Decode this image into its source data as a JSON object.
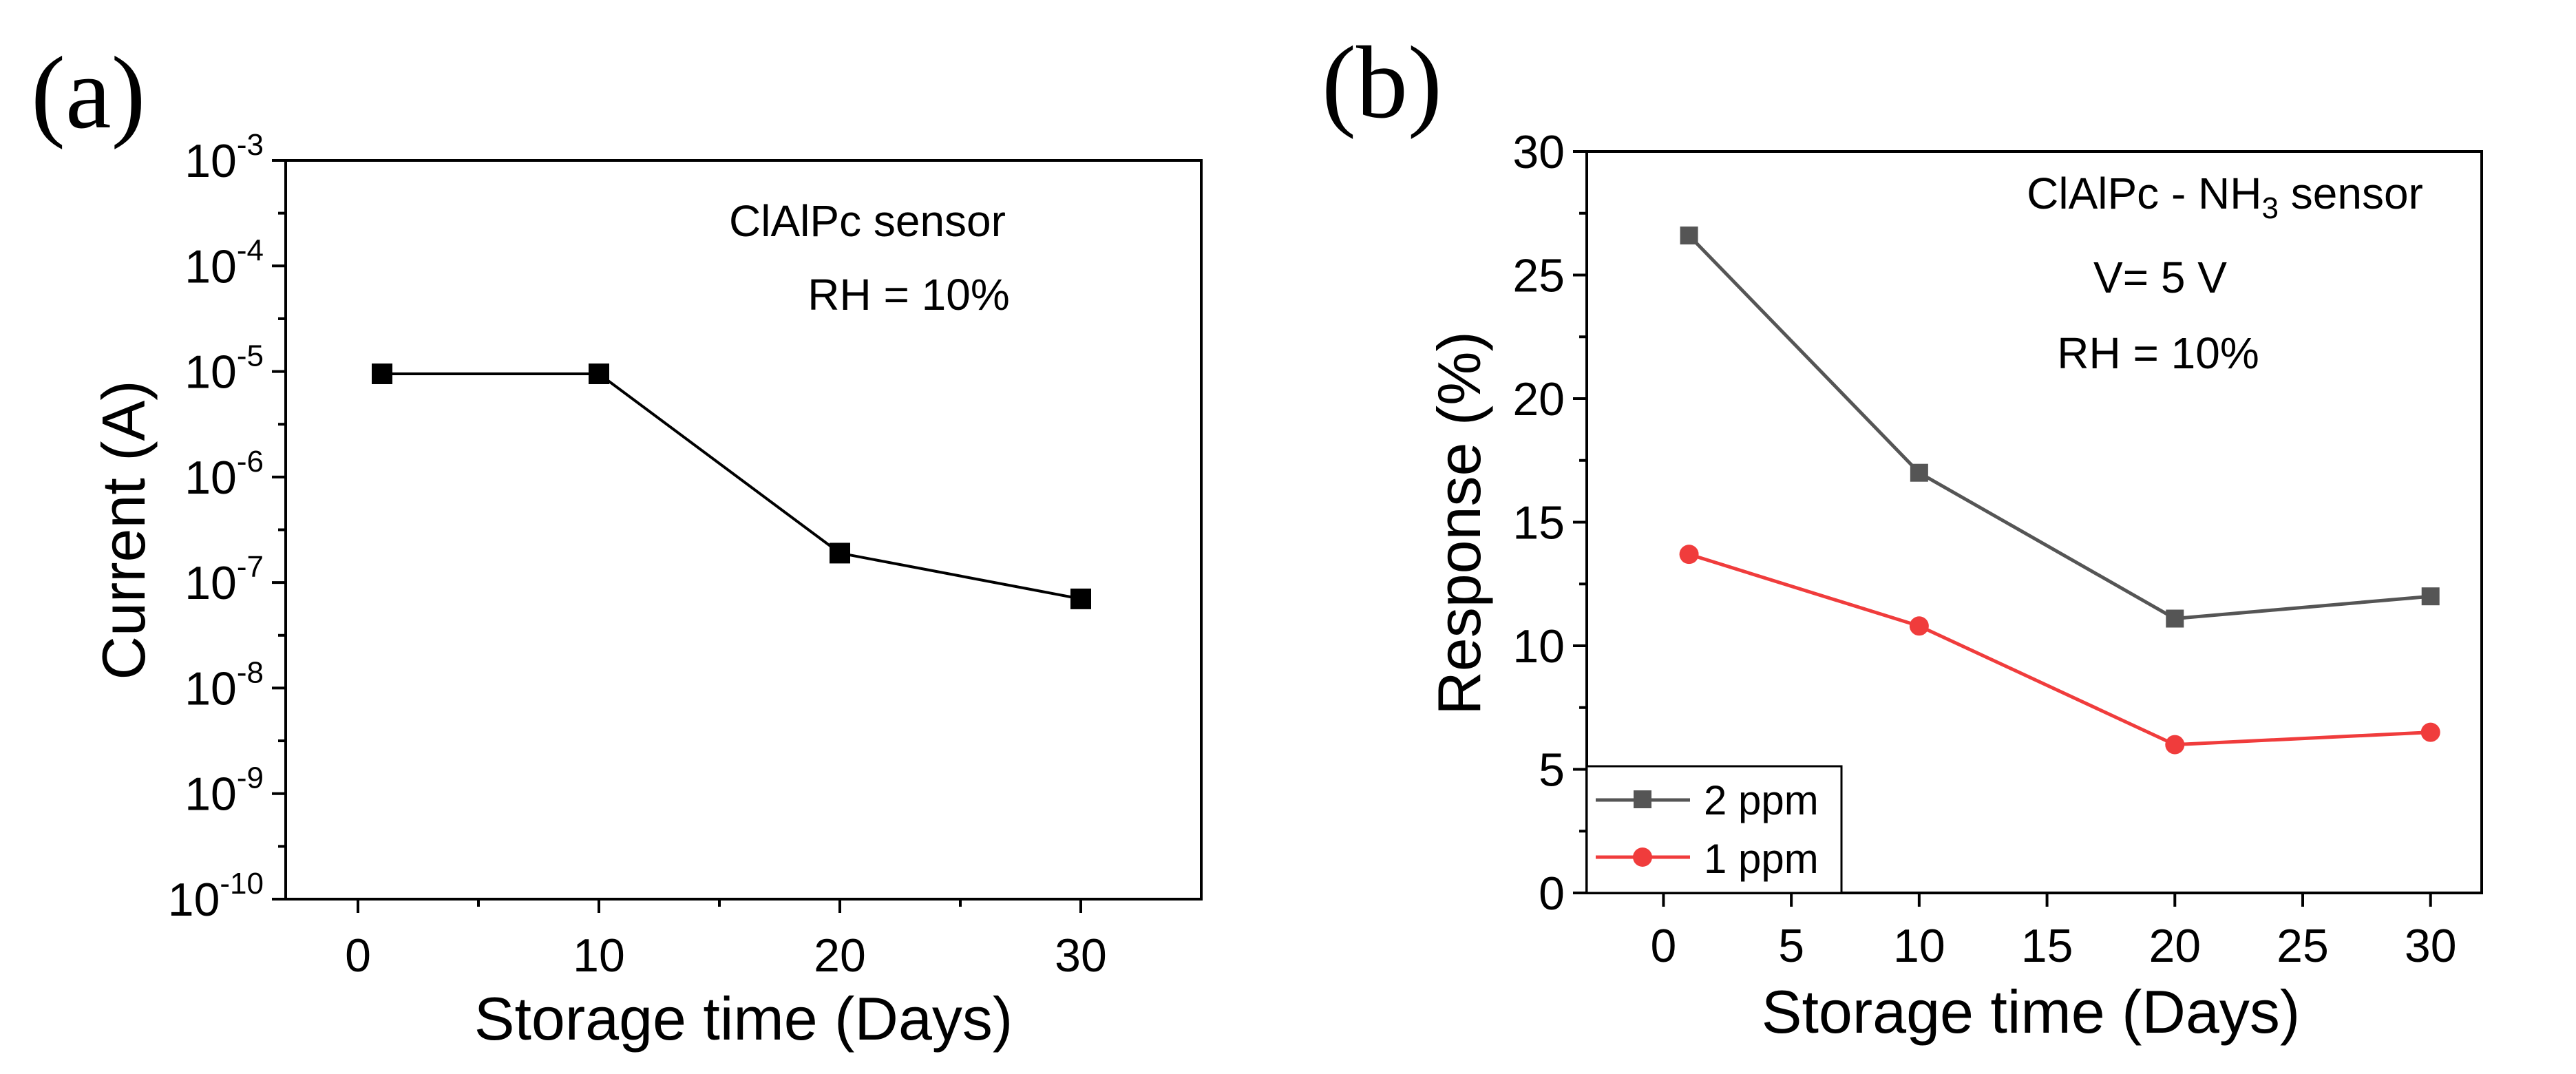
{
  "chart_data": [
    {
      "panel_label": "(a)",
      "type": "line",
      "yscale": "log",
      "xlabel": "Storage time (Days)",
      "ylabel": "Current (A)",
      "xlim": [
        -3,
        35
      ],
      "xticks": [
        0,
        10,
        20,
        30
      ],
      "xtick_labels": [
        "0",
        "10",
        "20",
        "30"
      ],
      "ylim_exp": [
        -10,
        -3
      ],
      "ytick_labels": [
        {
          "base": "10",
          "exp": "-10"
        },
        {
          "base": "10",
          "exp": "-9"
        },
        {
          "base": "10",
          "exp": "-8"
        },
        {
          "base": "10",
          "exp": "-7"
        },
        {
          "base": "10",
          "exp": "-6"
        },
        {
          "base": "10",
          "exp": "-5"
        },
        {
          "base": "10",
          "exp": "-4"
        },
        {
          "base": "10",
          "exp": "-3"
        }
      ],
      "annotations": [
        "ClAlPc  sensor",
        "RH = 10%"
      ],
      "series": [
        {
          "name": "Current",
          "color": "#000000",
          "marker": "square",
          "x": [
            1,
            10,
            20,
            30
          ],
          "y": [
            9.5e-06,
            9.5e-06,
            1.9e-07,
            7e-08
          ]
        }
      ]
    },
    {
      "panel_label": "(b)",
      "type": "line",
      "xlabel": "Storage time (Days)",
      "ylabel": "Response (%)",
      "xlim": [
        -3,
        32
      ],
      "xticks": [
        0,
        5,
        10,
        15,
        20,
        25,
        30
      ],
      "xtick_labels": [
        "0",
        "5",
        "10",
        "15",
        "20",
        "25",
        "30"
      ],
      "ylim": [
        0,
        30
      ],
      "yticks": [
        0,
        5,
        10,
        15,
        20,
        25,
        30
      ],
      "ytick_labels": [
        "0",
        "5",
        "10",
        "15",
        "20",
        "25",
        "30"
      ],
      "annotations": {
        "title_main": "ClAlPc - NH",
        "title_sub": "3",
        "title_tail": " sensor",
        "voltage": "V= 5 V",
        "humidity": "RH = 10%"
      },
      "legend_position": "bottom-left",
      "series": [
        {
          "name": "2 ppm",
          "color": "#555555",
          "marker": "square",
          "x": [
            1,
            10,
            20,
            30
          ],
          "y": [
            26.6,
            17.0,
            11.1,
            12.0
          ]
        },
        {
          "name": "1 ppm",
          "color": "#f03c3c",
          "marker": "circle",
          "x": [
            1,
            10,
            20,
            30
          ],
          "y": [
            13.7,
            10.8,
            6.0,
            6.5
          ]
        }
      ]
    }
  ]
}
